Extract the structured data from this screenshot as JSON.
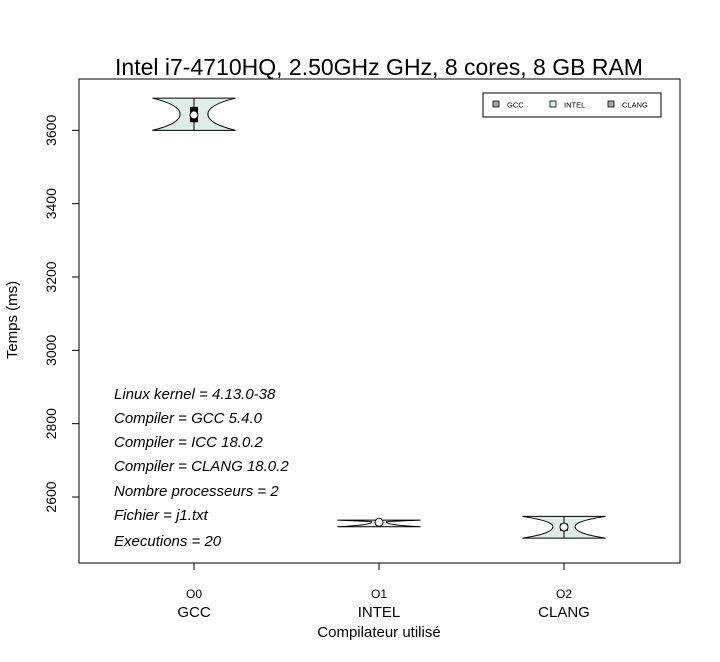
{
  "chart_data": {
    "type": "violin",
    "title": "Intel i7-4710HQ, 2.50GHz GHz, 8 cores, 8 GB RAM",
    "xlabel": "Compilateur utilisé",
    "ylabel": "Temps (ms)",
    "ylim": [
      2420,
      3740
    ],
    "yticks": [
      2600,
      2800,
      3000,
      3200,
      3400,
      3600
    ],
    "categories": [
      "O0",
      "O1",
      "O2"
    ],
    "category_sublabels": [
      "GCC",
      "INTEL",
      "CLANG"
    ],
    "legend": {
      "position": "top-right",
      "entries": [
        {
          "label": "GCC",
          "color": "#a6a6a6"
        },
        {
          "label": "INTEL",
          "color": "#e0ecea"
        },
        {
          "label": "CLANG",
          "color": "#a6a6a6"
        }
      ]
    },
    "violin_fill": "#e0ecea",
    "series": [
      {
        "category": "O0",
        "min": 3600,
        "q1": 3622,
        "median": 3642,
        "q3": 3664,
        "max": 3688,
        "max_width": 0.45,
        "neck_width": 0.15,
        "neck_at": 3644
      },
      {
        "category": "O1",
        "min": 2519,
        "q1": 2529,
        "median": 2531,
        "q3": 2533,
        "max": 2537,
        "max_width": 0.45,
        "neck_width": 0.08,
        "neck_at": 2532
      },
      {
        "category": "O2",
        "min": 2488,
        "q1": 2508,
        "median": 2518,
        "q3": 2527,
        "max": 2547,
        "max_width": 0.45,
        "neck_width": 0.12,
        "neck_at": 2519
      }
    ],
    "annotations": [
      "Linux kernel = 4.13.0-38",
      "Compiler = GCC 5.4.0",
      "Compiler = ICC 18.0.2",
      "Compiler = CLANG 18.0.2",
      "Nombre processeurs = 2",
      "Fichier = j1.txt",
      "Executions = 20"
    ],
    "grid": false
  }
}
